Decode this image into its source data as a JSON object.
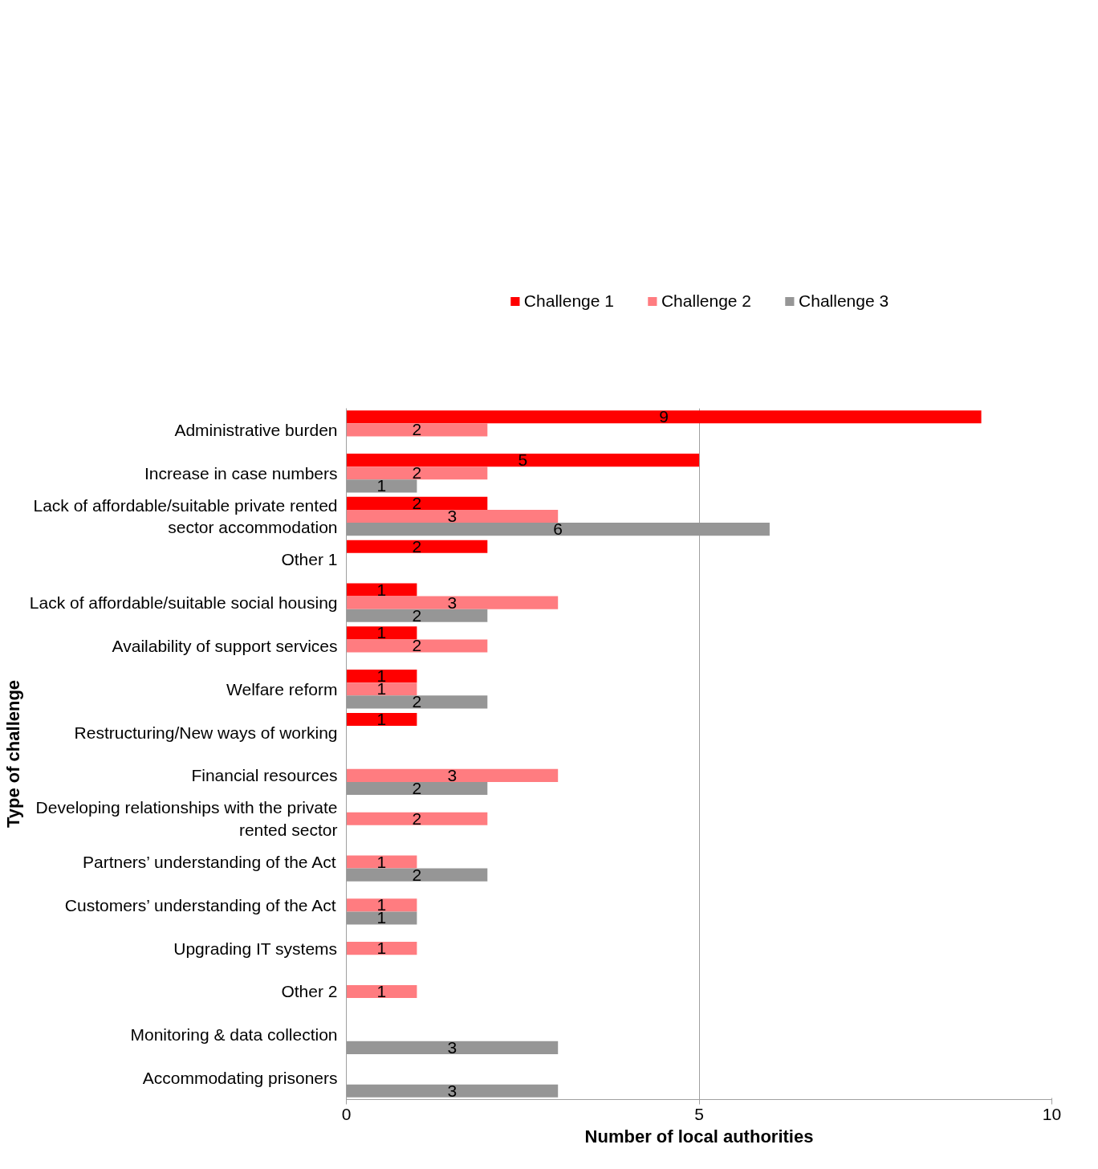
{
  "chart_data": {
    "type": "bar",
    "orientation": "horizontal",
    "categories": [
      "Administrative burden",
      "Increase in case numbers",
      "Lack of affordable/suitable private rented sector accommodation",
      "Other 1",
      "Lack of affordable/suitable social housing",
      "Availability of support services",
      "Welfare reform",
      "Restructuring/New ways of working",
      "Financial resources",
      "Developing relationships with the private rented sector",
      "Partners’ understanding of the Act",
      "Customers’ understanding of the Act",
      "Upgrading IT systems",
      "Other 2",
      "Monitoring & data collection",
      "Accommodating prisoners"
    ],
    "series": [
      {
        "name": "Challenge 1",
        "color": "#ff0000",
        "values": [
          9,
          5,
          2,
          2,
          1,
          1,
          1,
          1,
          null,
          null,
          null,
          null,
          null,
          null,
          null,
          null
        ]
      },
      {
        "name": "Challenge 2",
        "color": "#ff7c80",
        "values": [
          2,
          2,
          3,
          null,
          3,
          2,
          1,
          null,
          3,
          2,
          1,
          1,
          1,
          1,
          null,
          null
        ]
      },
      {
        "name": "Challenge 3",
        "color": "#969696",
        "values": [
          null,
          1,
          6,
          null,
          2,
          null,
          2,
          null,
          2,
          null,
          2,
          1,
          null,
          null,
          3,
          3
        ]
      }
    ],
    "xlabel": "Number of local authorities",
    "ylabel": "Type of challenge",
    "xlim": [
      0,
      10
    ],
    "xticks": [
      0,
      5,
      10
    ],
    "grid": "x",
    "legend": "top",
    "data_labels": true
  }
}
